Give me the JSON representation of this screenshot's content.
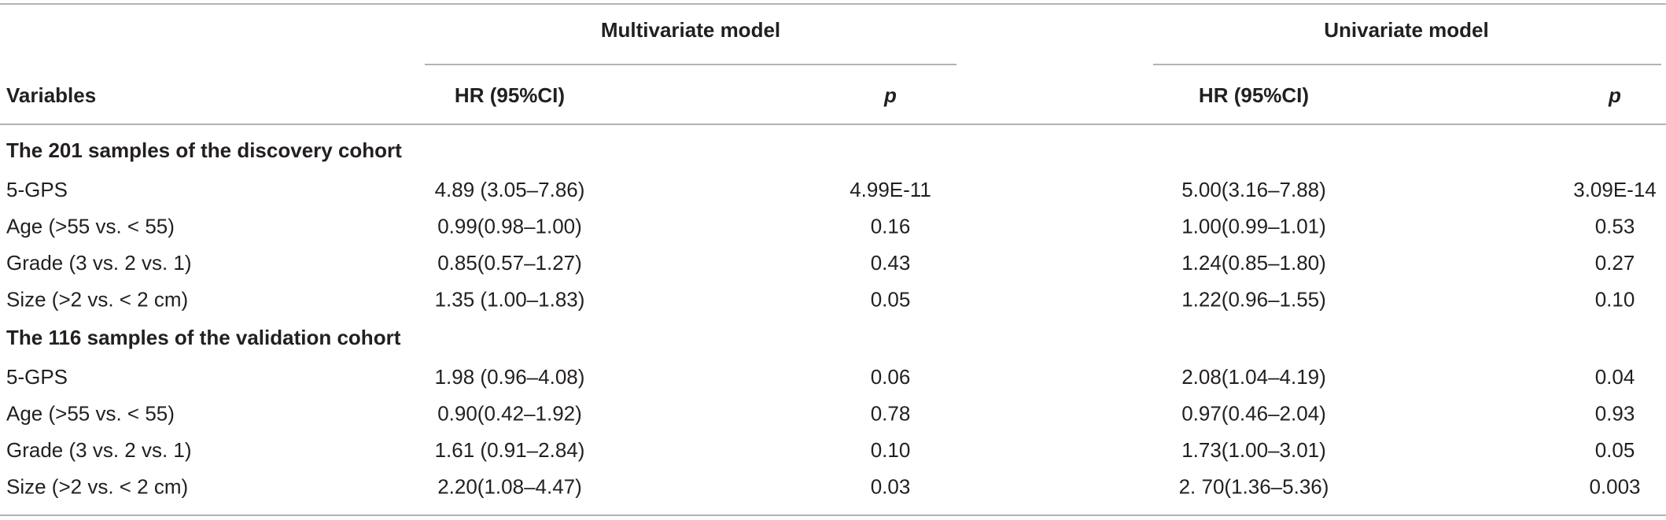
{
  "table": {
    "group_headers": [
      "Multivariate model",
      "Univariate model"
    ],
    "columns": [
      "Variables",
      "HR (95%CI)",
      "p",
      "HR (95%CI)",
      "p"
    ],
    "sections": [
      {
        "title": "The 201 samples of the discovery cohort",
        "rows": [
          [
            "5-GPS",
            "4.89 (3.05–7.86)",
            "4.99E-11",
            "5.00(3.16–7.88)",
            "3.09E-14"
          ],
          [
            "Age (>55 vs. < 55)",
            "0.99(0.98–1.00)",
            "0.16",
            "1.00(0.99–1.01)",
            "0.53"
          ],
          [
            "Grade (3 vs. 2 vs. 1)",
            "0.85(0.57–1.27)",
            "0.43",
            "1.24(0.85–1.80)",
            "0.27"
          ],
          [
            "Size (>2 vs. < 2 cm)",
            "1.35 (1.00–1.83)",
            "0.05",
            "1.22(0.96–1.55)",
            "0.10"
          ]
        ]
      },
      {
        "title": "The 116 samples of the validation cohort",
        "rows": [
          [
            "5-GPS",
            "1.98 (0.96–4.08)",
            "0.06",
            "2.08(1.04–4.19)",
            "0.04"
          ],
          [
            "Age (>55 vs. < 55)",
            "0.90(0.42–1.92)",
            "0.78",
            "0.97(0.46–2.04)",
            "0.93"
          ],
          [
            "Grade (3 vs. 2 vs. 1)",
            "1.61 (0.91–2.84)",
            "0.10",
            "1.73(1.00–3.01)",
            "0.05"
          ],
          [
            "Size (>2 vs. < 2 cm)",
            "2.20(1.08–4.47)",
            "0.03",
            "2. 70(1.36–5.36)",
            "0.003"
          ]
        ]
      }
    ]
  }
}
